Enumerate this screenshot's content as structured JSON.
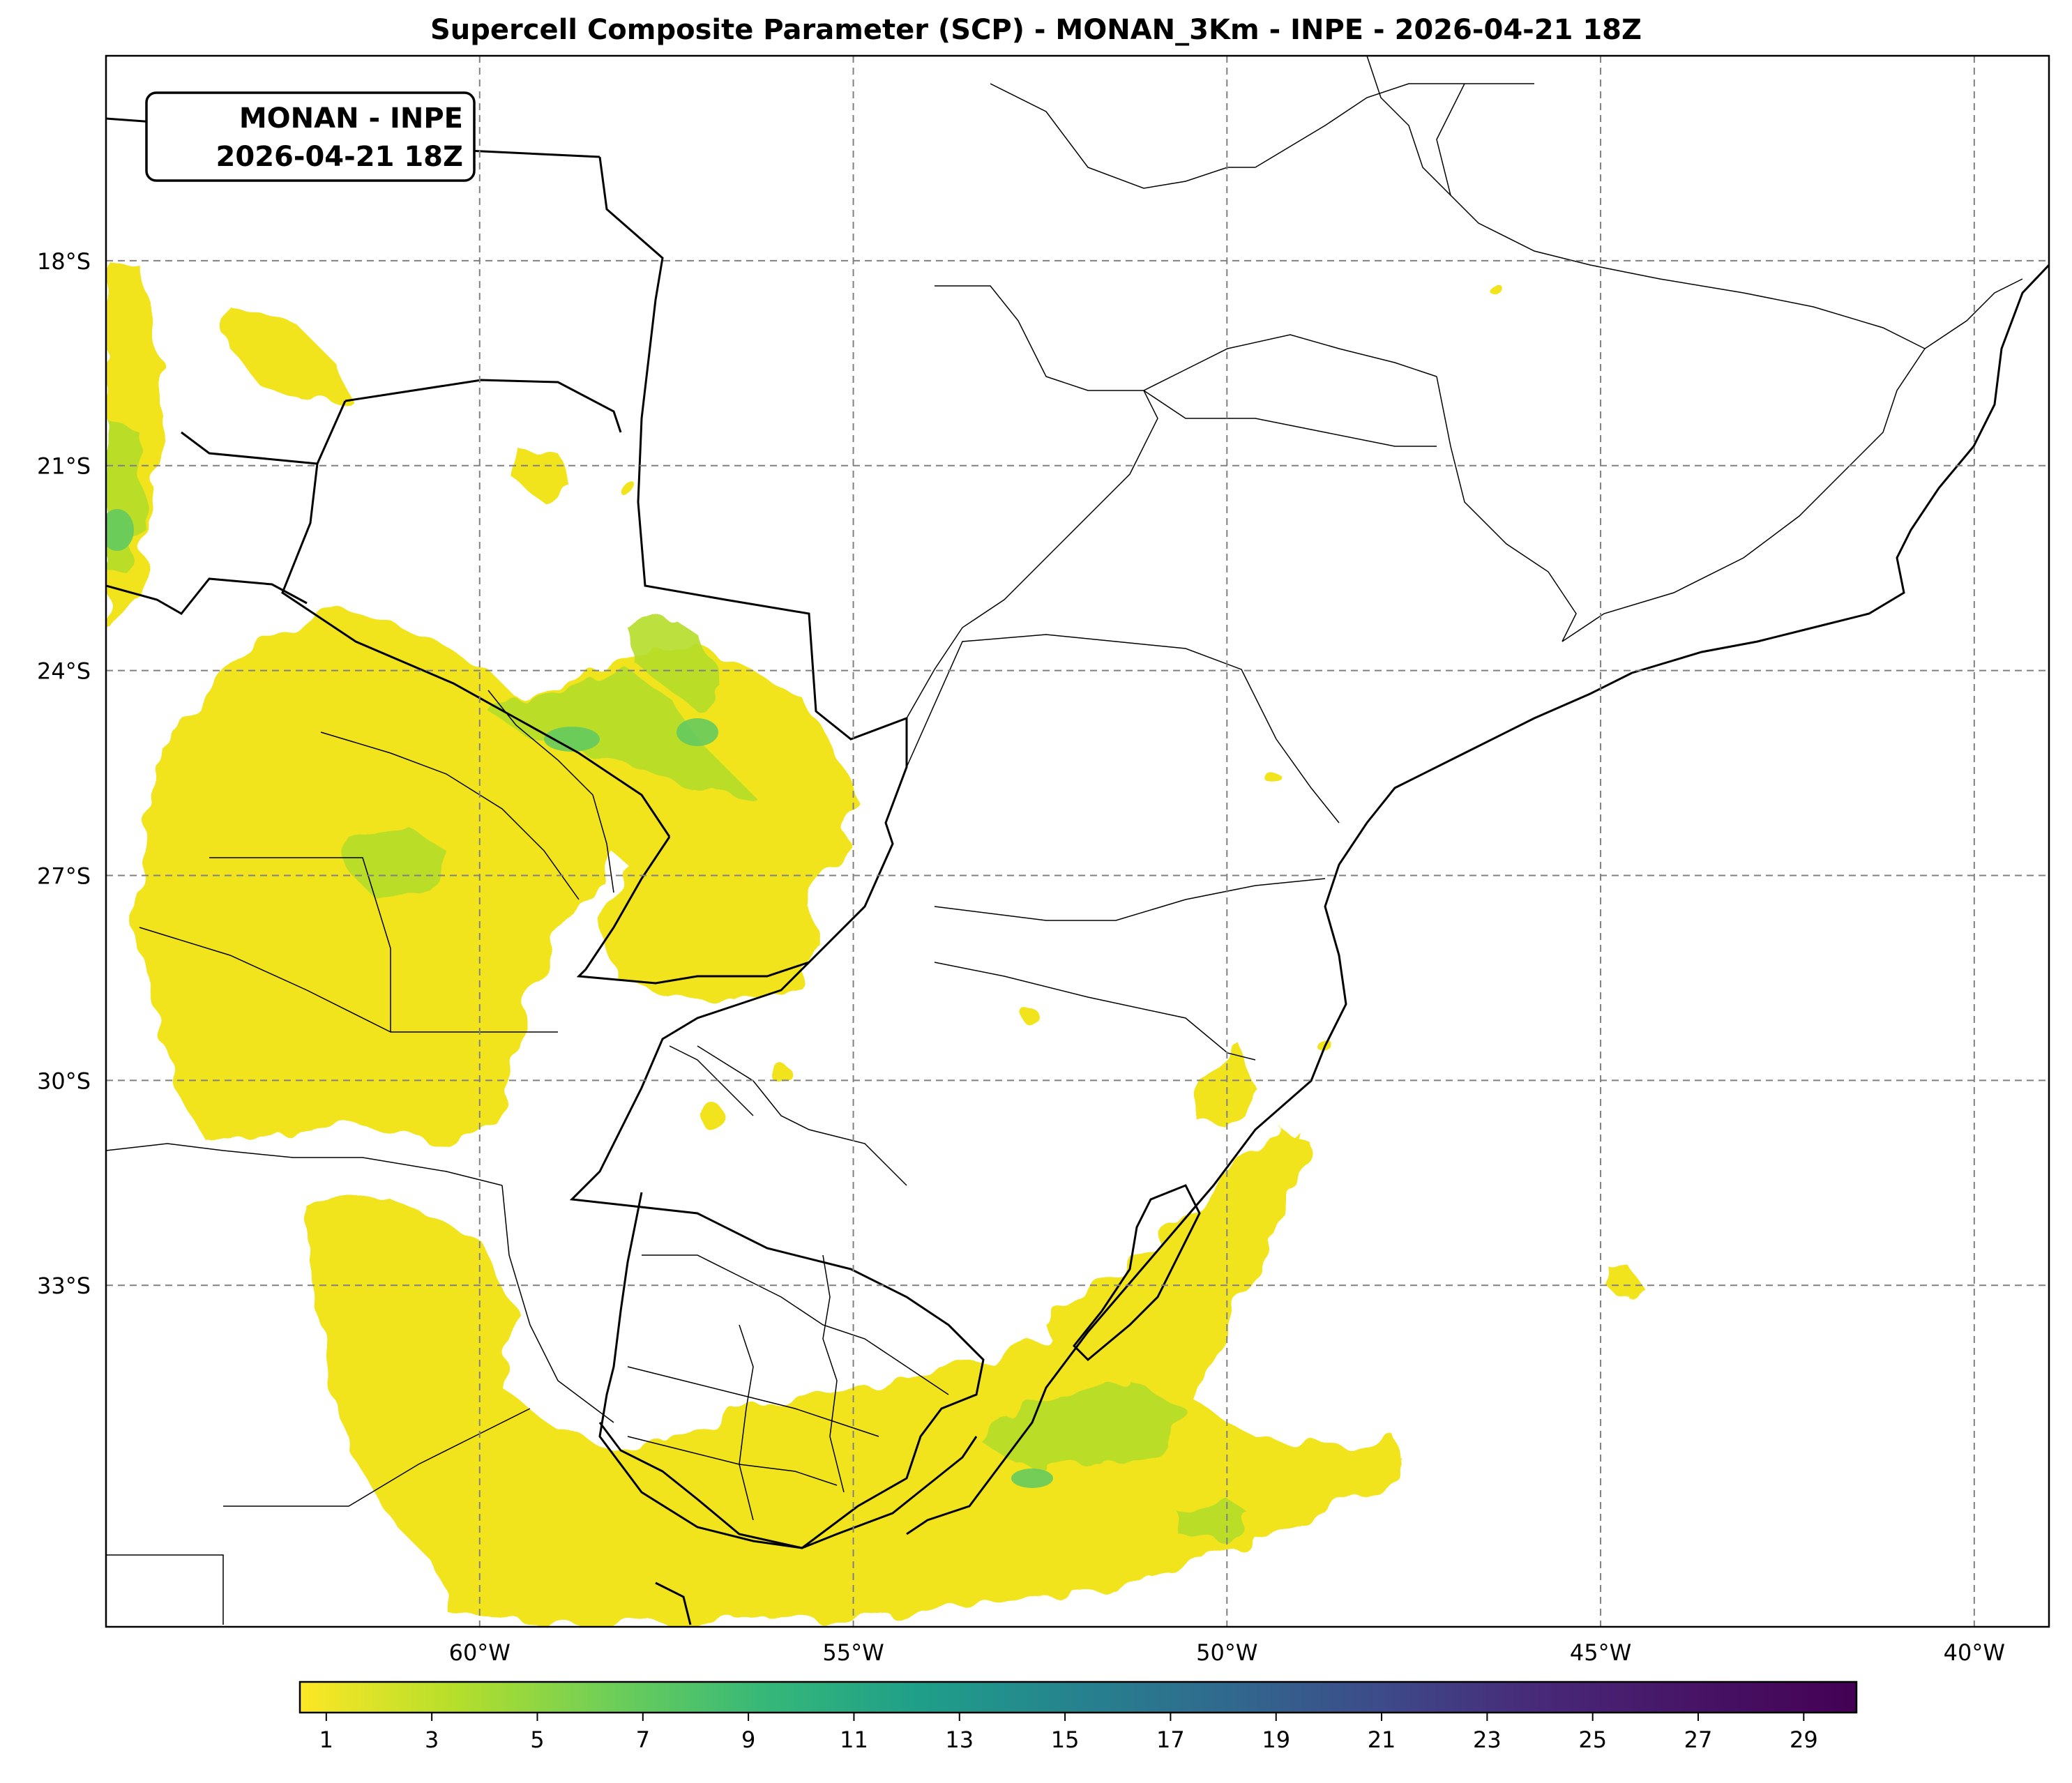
{
  "title": "Supercell Composite Parameter (SCP) - MONAN_3Km - INPE - 2026-04-21 18Z",
  "info_box": {
    "line1": "MONAN - INPE",
    "line2": "2026-04-21 18Z"
  },
  "map": {
    "lon_range": [
      -65.0,
      -39.0
    ],
    "lat_range": [
      -38.0,
      -15.0
    ],
    "lat_ticks": [
      {
        "value": -18,
        "label": "18°S"
      },
      {
        "value": -21,
        "label": "21°S"
      },
      {
        "value": -24,
        "label": "24°S"
      },
      {
        "value": -27,
        "label": "27°S"
      },
      {
        "value": -30,
        "label": "30°S"
      },
      {
        "value": -33,
        "label": "33°S"
      }
    ],
    "lon_ticks": [
      {
        "value": -60,
        "label": "60°W"
      },
      {
        "value": -55,
        "label": "55°W"
      },
      {
        "value": -50,
        "label": "50°W"
      },
      {
        "value": -45,
        "label": "45°W"
      },
      {
        "value": -40,
        "label": "40°W"
      }
    ],
    "gridlines": true,
    "field_colors": {
      "low": "#f2e41f",
      "mid": "#b5dd2b",
      "high": "#5ec962"
    }
  },
  "colorbar": {
    "min": 0.5,
    "max": 30,
    "colormap": "viridis_r",
    "ticks": [
      "1",
      "3",
      "5",
      "7",
      "9",
      "11",
      "13",
      "15",
      "17",
      "19",
      "21",
      "23",
      "25",
      "27",
      "29"
    ]
  }
}
